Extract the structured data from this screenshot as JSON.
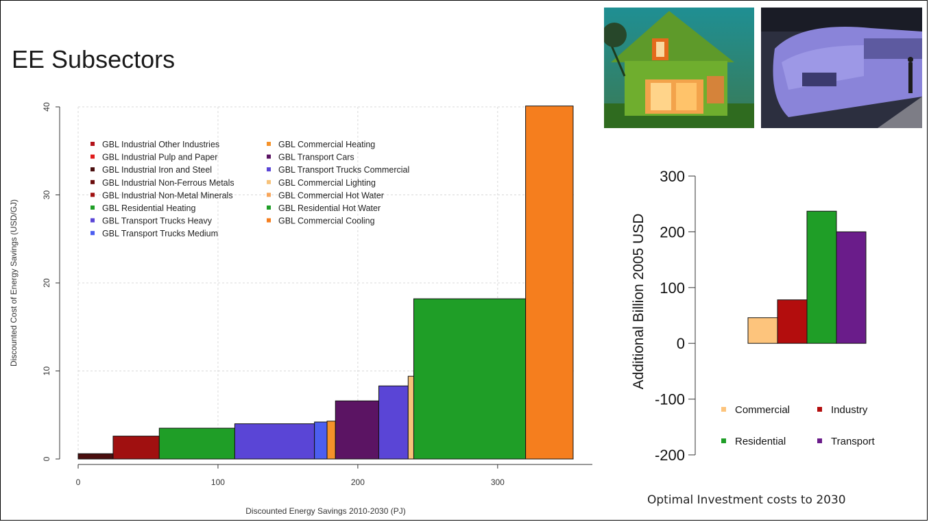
{
  "slide": {
    "title": "EE Subsectors",
    "caption": "Optimal Investment costs to 2030"
  },
  "images": [
    {
      "name": "green-house-photo",
      "subject": "house"
    },
    {
      "name": "train-photo",
      "subject": "train"
    }
  ],
  "chart_data": [
    {
      "type": "bar",
      "variant": "cost-curve",
      "title": "",
      "xlabel": "Discounted Energy Savings 2010-2030 (PJ)",
      "ylabel": "Discounted Cost of Energy Savings (USD/GJ)",
      "xlim": [
        0,
        355
      ],
      "ylim": [
        0,
        40
      ],
      "xticks": [
        0,
        100,
        200,
        300
      ],
      "yticks": [
        0,
        10,
        20,
        30,
        40
      ],
      "grid": true,
      "legend_position": "top-left",
      "series": [
        {
          "name": "GBL Industrial Other Industries",
          "color": "#b3121a",
          "x_start": 0,
          "x_end": 0,
          "value": 0
        },
        {
          "name": "GBL Industrial Pulp and Paper",
          "color": "#e01b1b",
          "x_start": 0,
          "x_end": 0,
          "value": 0
        },
        {
          "name": "GBL Industrial Iron and Steel",
          "color": "#4a0f0f",
          "x_start": 0,
          "x_end": 25,
          "value": 0.6
        },
        {
          "name": "GBL Industrial Non-Ferrous Metals",
          "color": "#6b0d0d",
          "x_start": 25,
          "x_end": 25,
          "value": 0
        },
        {
          "name": "GBL Industrial Non-Metal Minerals",
          "color": "#a01010",
          "x_start": 25,
          "x_end": 58,
          "value": 2.6
        },
        {
          "name": "GBL Residential Heating",
          "color": "#1f9e27",
          "x_start": 58,
          "x_end": 112,
          "value": 3.5
        },
        {
          "name": "GBL Transport Trucks Heavy",
          "color": "#5a45d6",
          "x_start": 112,
          "x_end": 169,
          "value": 4.0
        },
        {
          "name": "GBL Transport Trucks Medium",
          "color": "#4c5ef0",
          "x_start": 169,
          "x_end": 178,
          "value": 4.2
        },
        {
          "name": "GBL Commercial Heating",
          "color": "#f5922a",
          "x_start": 178,
          "x_end": 184,
          "value": 4.3
        },
        {
          "name": "GBL Transport Cars",
          "color": "#5b1463",
          "x_start": 184,
          "x_end": 215,
          "value": 6.6
        },
        {
          "name": "GBL Transport Trucks Commercial",
          "color": "#5a45d6",
          "x_start": 215,
          "x_end": 236,
          "value": 8.3
        },
        {
          "name": "GBL Commercial Lighting",
          "color": "#f7c27a",
          "x_start": 236,
          "x_end": 240,
          "value": 9.4
        },
        {
          "name": "GBL Commercial Hot Water",
          "color": "#f7a55a",
          "x_start": 240,
          "x_end": 240,
          "value": 0
        },
        {
          "name": "GBL Residential Hot Water",
          "color": "#1f9e27",
          "x_start": 240,
          "x_end": 320,
          "value": 18.2
        },
        {
          "name": "GBL Commercial Cooling",
          "color": "#f57e1e",
          "x_start": 320,
          "x_end": 354,
          "value": 40.1
        }
      ]
    },
    {
      "type": "bar",
      "title": "",
      "xlabel": "",
      "ylabel": "Additional Billion 2005 USD",
      "ylim": [
        -200,
        300
      ],
      "yticks": [
        -200,
        -100,
        0,
        100,
        200,
        300
      ],
      "grid": false,
      "legend_position": "bottom",
      "categories": [
        "Commercial",
        "Industry",
        "Residential",
        "Transport"
      ],
      "values": [
        46,
        78,
        237,
        200
      ],
      "colors": [
        "#fdc47c",
        "#b30d0d",
        "#1f9e27",
        "#6a1c8a"
      ]
    }
  ]
}
